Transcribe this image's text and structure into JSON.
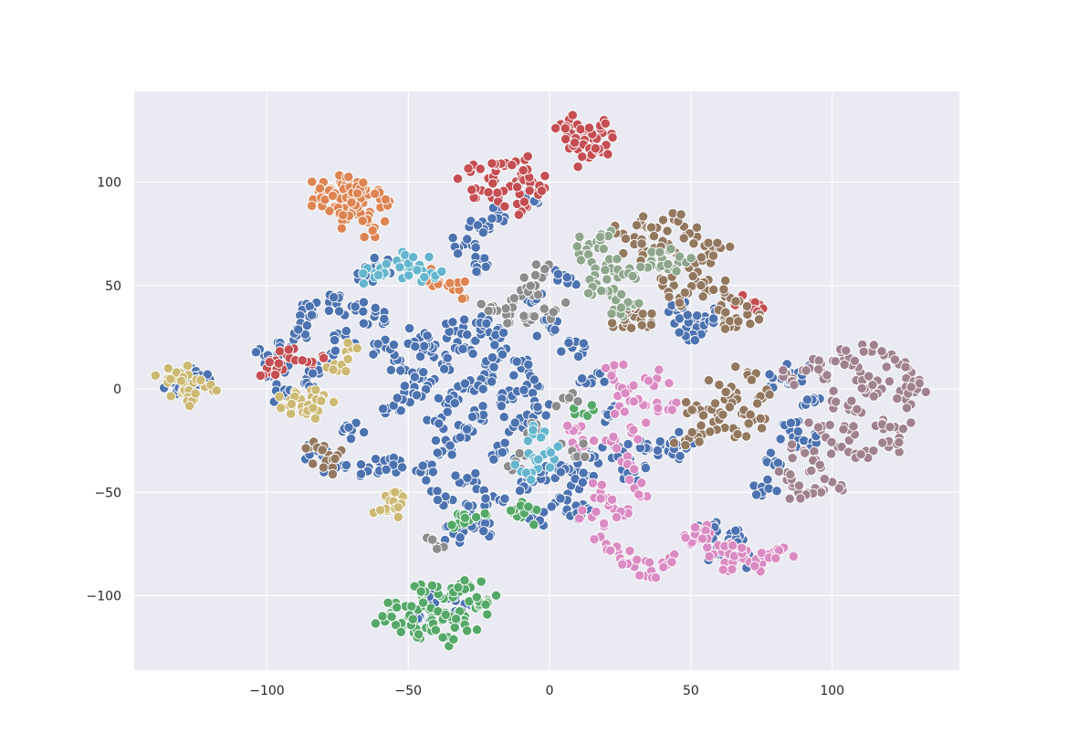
{
  "chart_data": {
    "type": "scatter",
    "title": "",
    "xlabel": "",
    "ylabel": "",
    "xlim": [
      -147,
      145
    ],
    "ylim": [
      -136,
      144
    ],
    "grid": true,
    "legend": "none",
    "style": {
      "background": "#EAEAF2",
      "grid_color": "#FFFFFF",
      "marker_edge": "#FFFFFF"
    },
    "x_ticks": [
      {
        "value": -100,
        "label": "−100"
      },
      {
        "value": -50,
        "label": "−50"
      },
      {
        "value": 0,
        "label": "0"
      },
      {
        "value": 50,
        "label": "50"
      },
      {
        "value": 100,
        "label": "100"
      }
    ],
    "y_ticks": [
      {
        "value": -100,
        "label": "−100"
      },
      {
        "value": -50,
        "label": "−50"
      },
      {
        "value": 0,
        "label": "0"
      },
      {
        "value": 50,
        "label": "50"
      },
      {
        "value": 100,
        "label": "100"
      }
    ],
    "palette": [
      "#4C72B0",
      "#DD8452",
      "#55A868",
      "#C44E52",
      "#8172B3",
      "#937860",
      "#DA8BC3",
      "#8C8C8C",
      "#CCB974",
      "#64B5CD"
    ],
    "series": [
      {
        "color": "#4C72B0",
        "points": [
          [
            -38,
            12
          ],
          [
            -30,
            20
          ],
          [
            -45,
            5
          ],
          [
            -22,
            8
          ],
          [
            -35,
            -5
          ],
          [
            -28,
            0
          ],
          [
            -42,
            18
          ],
          [
            -18,
            15
          ],
          [
            -25,
            -12
          ],
          [
            -48,
            -2
          ],
          [
            -33,
            28
          ],
          [
            -15,
            -5
          ],
          [
            -40,
            -15
          ],
          [
            -52,
            10
          ],
          [
            -20,
            25
          ],
          [
            -10,
            10
          ],
          [
            -55,
            -8
          ],
          [
            -30,
            -20
          ],
          [
            -12,
            -18
          ],
          [
            -46,
            25
          ],
          [
            -26,
            32
          ],
          [
            -8,
            2
          ],
          [
            -36,
            -28
          ],
          [
            -58,
            20
          ],
          [
            -16,
            -30
          ],
          [
            -4,
            -10
          ],
          [
            -44,
            -40
          ],
          [
            -30,
            -45
          ],
          [
            -20,
            -52
          ],
          [
            -10,
            -45
          ],
          [
            -2,
            -40
          ],
          [
            -28,
            -60
          ],
          [
            -38,
            -52
          ],
          [
            -24,
            -68
          ],
          [
            -34,
            -70
          ],
          [
            6,
            -38
          ],
          [
            12,
            -45
          ],
          [
            2,
            -55
          ],
          [
            10,
            -60
          ],
          [
            15,
            -32
          ],
          [
            -6,
            -62
          ],
          [
            -62,
            35
          ],
          [
            -70,
            40
          ],
          [
            -78,
            42
          ],
          [
            -84,
            38
          ],
          [
            -66,
            55
          ],
          [
            -58,
            60
          ],
          [
            -72,
            25
          ],
          [
            -78,
            15
          ],
          [
            -82,
            -30
          ],
          [
            -76,
            -36
          ],
          [
            -70,
            -20
          ],
          [
            -64,
            -38
          ],
          [
            -56,
            -36
          ],
          [
            -92,
            20
          ],
          [
            -96,
            10
          ],
          [
            -86,
            5
          ],
          [
            -90,
            28
          ],
          [
            -100,
            15
          ],
          [
            -94,
            -2
          ],
          [
            -128,
            4
          ],
          [
            -132,
            0
          ],
          [
            -124,
            6
          ],
          [
            -30,
            70
          ],
          [
            -25,
            78
          ],
          [
            -22,
            60
          ],
          [
            -18,
            85
          ],
          [
            -8,
            92
          ],
          [
            25,
            -30
          ],
          [
            35,
            -28
          ],
          [
            42,
            -30
          ],
          [
            48,
            -25
          ],
          [
            30,
            -40
          ],
          [
            52,
            30
          ],
          [
            48,
            28
          ],
          [
            45,
            38
          ],
          [
            55,
            35
          ],
          [
            82,
            5
          ],
          [
            88,
            8
          ],
          [
            94,
            -5
          ],
          [
            85,
            -20
          ],
          [
            90,
            -25
          ],
          [
            80,
            -35
          ],
          [
            76,
            -48
          ],
          [
            60,
            -80
          ],
          [
            64,
            -70
          ],
          [
            56,
            -68
          ],
          [
            72,
            -84
          ],
          [
            8,
            20
          ],
          [
            15,
            5
          ],
          [
            20,
            -12
          ],
          [
            0,
            30
          ],
          [
            -5,
            45
          ],
          [
            5,
            55
          ],
          [
            -40,
            -100
          ],
          [
            -46,
            -110
          ],
          [
            -30,
            -104
          ]
        ]
      },
      {
        "color": "#DD8452",
        "points": [
          [
            -80,
            98
          ],
          [
            -74,
            100
          ],
          [
            -70,
            95
          ],
          [
            -66,
            90
          ],
          [
            -76,
            88
          ],
          [
            -82,
            92
          ],
          [
            -72,
            82
          ],
          [
            -64,
            84
          ],
          [
            -68,
            100
          ],
          [
            -60,
            92
          ],
          [
            -78,
            96
          ],
          [
            -62,
            78
          ],
          [
            -70,
            85
          ],
          [
            -74,
            92
          ],
          [
            -66,
            98
          ],
          [
            -36,
            50
          ],
          [
            -40,
            54
          ],
          [
            -32,
            48
          ]
        ]
      },
      {
        "color": "#55A868",
        "points": [
          [
            -55,
            -105
          ],
          [
            -50,
            -110
          ],
          [
            -45,
            -102
          ],
          [
            -40,
            -108
          ],
          [
            -35,
            -100
          ],
          [
            -30,
            -110
          ],
          [
            -48,
            -118
          ],
          [
            -42,
            -115
          ],
          [
            -32,
            -98
          ],
          [
            -25,
            -105
          ],
          [
            -38,
            -112
          ],
          [
            -52,
            -114
          ],
          [
            -28,
            -96
          ],
          [
            -44,
            -98
          ],
          [
            -36,
            -120
          ],
          [
            -58,
            -110
          ],
          [
            -22,
            -102
          ],
          [
            -30,
            -114
          ],
          [
            -32,
            -65
          ],
          [
            -26,
            -62
          ],
          [
            -10,
            -62
          ],
          [
            -6,
            -58
          ],
          [
            12,
            -12
          ]
        ]
      },
      {
        "color": "#C44E52",
        "points": [
          [
            -28,
            105
          ],
          [
            -22,
            102
          ],
          [
            -16,
            108
          ],
          [
            -10,
            104
          ],
          [
            -24,
            96
          ],
          [
            -14,
            98
          ],
          [
            -6,
            100
          ],
          [
            -18,
            92
          ],
          [
            -12,
            110
          ],
          [
            -4,
            94
          ],
          [
            -8,
            88
          ],
          [
            8,
            128
          ],
          [
            12,
            124
          ],
          [
            16,
            120
          ],
          [
            10,
            116
          ],
          [
            18,
            126
          ],
          [
            14,
            112
          ],
          [
            20,
            118
          ],
          [
            6,
            122
          ],
          [
            -95,
            12
          ],
          [
            -100,
            10
          ],
          [
            -92,
            15
          ],
          [
            -84,
            12
          ],
          [
            72,
            42
          ],
          [
            70,
            38
          ]
        ]
      },
      {
        "color": "#937860",
        "points": [
          [
            26,
            75
          ],
          [
            32,
            80
          ],
          [
            38,
            78
          ],
          [
            44,
            82
          ],
          [
            30,
            70
          ],
          [
            42,
            70
          ],
          [
            48,
            74
          ],
          [
            36,
            66
          ],
          [
            50,
            60
          ],
          [
            56,
            65
          ],
          [
            60,
            68
          ],
          [
            52,
            52
          ],
          [
            58,
            48
          ],
          [
            64,
            44
          ],
          [
            40,
            50
          ],
          [
            46,
            44
          ],
          [
            30,
            35
          ],
          [
            36,
            32
          ],
          [
            26,
            30
          ],
          [
            62,
            34
          ],
          [
            66,
            30
          ],
          [
            70,
            36
          ],
          [
            56,
            -10
          ],
          [
            62,
            -5
          ],
          [
            68,
            -12
          ],
          [
            60,
            2
          ],
          [
            66,
            -20
          ],
          [
            72,
            -15
          ],
          [
            52,
            -8
          ],
          [
            58,
            -16
          ],
          [
            74,
            -4
          ],
          [
            70,
            8
          ],
          [
            48,
            -25
          ],
          [
            54,
            -22
          ],
          [
            -84,
            -28
          ],
          [
            -78,
            -32
          ],
          [
            -80,
            -38
          ]
        ]
      },
      {
        "color": "#DA8BC3",
        "points": [
          [
            22,
            8
          ],
          [
            28,
            0
          ],
          [
            25,
            -10
          ],
          [
            30,
            -20
          ],
          [
            34,
            -8
          ],
          [
            20,
            -25
          ],
          [
            26,
            -35
          ],
          [
            30,
            -48
          ],
          [
            22,
            -55
          ],
          [
            28,
            -60
          ],
          [
            20,
            -75
          ],
          [
            25,
            -82
          ],
          [
            30,
            -86
          ],
          [
            36,
            -88
          ],
          [
            40,
            -84
          ],
          [
            15,
            -62
          ],
          [
            18,
            -50
          ],
          [
            50,
            -75
          ],
          [
            55,
            -70
          ],
          [
            58,
            -80
          ],
          [
            62,
            -84
          ],
          [
            68,
            -82
          ],
          [
            74,
            -86
          ],
          [
            78,
            -80
          ],
          [
            82,
            -78
          ],
          [
            64,
            -75
          ],
          [
            52,
            -68
          ],
          [
            10,
            -20
          ],
          [
            12,
            -28
          ],
          [
            38,
            5
          ],
          [
            42,
            -10
          ]
        ]
      },
      {
        "color": "#A0828F",
        "points": [
          [
            92,
            10
          ],
          [
            98,
            5
          ],
          [
            104,
            12
          ],
          [
            110,
            8
          ],
          [
            116,
            4
          ],
          [
            122,
            14
          ],
          [
            128,
            8
          ],
          [
            100,
            -5
          ],
          [
            106,
            -10
          ],
          [
            112,
            -2
          ],
          [
            118,
            -15
          ],
          [
            124,
            -20
          ],
          [
            96,
            -20
          ],
          [
            102,
            -28
          ],
          [
            108,
            -22
          ],
          [
            90,
            -30
          ],
          [
            96,
            -38
          ],
          [
            100,
            -45
          ],
          [
            94,
            -48
          ],
          [
            88,
            -50
          ],
          [
            84,
            -44
          ],
          [
            112,
            -30
          ],
          [
            120,
            -28
          ],
          [
            126,
            -5
          ],
          [
            114,
            18
          ],
          [
            106,
            15
          ],
          [
            130,
            0
          ],
          [
            86,
            5
          ]
        ]
      },
      {
        "color": "#8C8C8C",
        "points": [
          [
            -10,
            45
          ],
          [
            -5,
            50
          ],
          [
            -14,
            36
          ],
          [
            -2,
            56
          ],
          [
            -8,
            32
          ],
          [
            -20,
            40
          ],
          [
            6,
            -5
          ],
          [
            8,
            -30
          ],
          [
            -4,
            -20
          ],
          [
            -12,
            -35
          ],
          [
            -40,
            -76
          ],
          [
            2,
            38
          ]
        ]
      },
      {
        "color": "#CCB974",
        "points": [
          [
            -135,
            5
          ],
          [
            -130,
            -2
          ],
          [
            -126,
            3
          ],
          [
            -122,
            1
          ],
          [
            -132,
            8
          ],
          [
            -128,
            -4
          ],
          [
            -88,
            -5
          ],
          [
            -84,
            -8
          ],
          [
            -80,
            -3
          ],
          [
            -86,
            -12
          ],
          [
            -76,
            12
          ],
          [
            -72,
            18
          ],
          [
            -92,
            -8
          ],
          [
            -56,
            -55
          ],
          [
            -52,
            -52
          ],
          [
            -58,
            -58
          ]
        ]
      },
      {
        "color": "#64B5CD",
        "points": [
          [
            -54,
            62
          ],
          [
            -50,
            58
          ],
          [
            -58,
            56
          ],
          [
            -46,
            60
          ],
          [
            -62,
            54
          ],
          [
            -42,
            56
          ],
          [
            -6,
            -22
          ],
          [
            -4,
            -35
          ],
          [
            -10,
            -40
          ],
          [
            0,
            -30
          ]
        ]
      },
      {
        "color": "#8DA68C",
        "points": [
          [
            14,
            70
          ],
          [
            18,
            72
          ],
          [
            12,
            65
          ],
          [
            20,
            60
          ],
          [
            24,
            58
          ],
          [
            16,
            55
          ],
          [
            22,
            45
          ],
          [
            28,
            40
          ],
          [
            18,
            48
          ],
          [
            26,
            35
          ],
          [
            36,
            62
          ],
          [
            42,
            58
          ],
          [
            30,
            55
          ],
          [
            46,
            64
          ]
        ]
      }
    ]
  }
}
